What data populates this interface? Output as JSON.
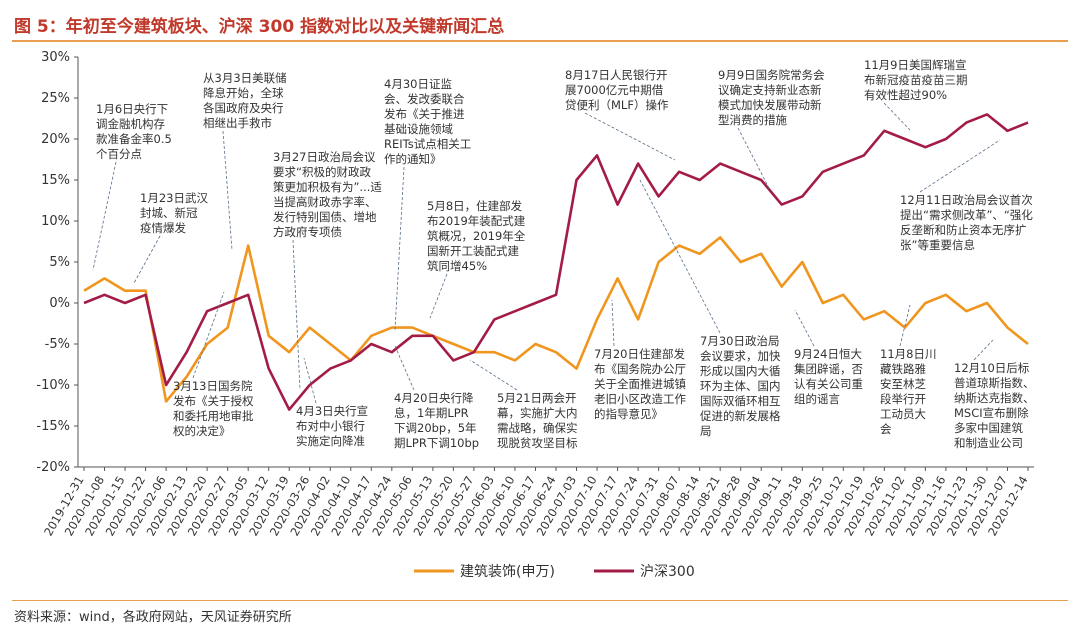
{
  "title": "图 5：年初至今建筑板块、沪深 300 指数对比以及关键新闻汇总",
  "source": "资料来源：wind，各政府网站，天风证券研究所",
  "colors": {
    "construction": "#f0961e",
    "hs300": "#a31c45",
    "accent": "#c0392b"
  },
  "chart_data": {
    "type": "line",
    "title": "图 5：年初至今建筑板块、沪深 300 指数对比以及关键新闻汇总",
    "xlabel": "",
    "ylabel": "",
    "ylim": [
      -20,
      30
    ],
    "yticks": [
      "30%",
      "25%",
      "20%",
      "15%",
      "10%",
      "5%",
      "0%",
      "-5%",
      "-10%",
      "-15%",
      "-20%"
    ],
    "x": [
      "2019-12-31",
      "2020-01-08",
      "2020-01-15",
      "2020-01-22",
      "2020-02-06",
      "2020-02-13",
      "2020-02-20",
      "2020-02-27",
      "2020-03-05",
      "2020-03-12",
      "2020-03-19",
      "2020-03-26",
      "2020-04-02",
      "2020-04-10",
      "2020-04-17",
      "2020-04-24",
      "2020-05-06",
      "2020-05-13",
      "2020-05-20",
      "2020-05-27",
      "2020-06-03",
      "2020-06-10",
      "2020-06-17",
      "2020-06-24",
      "2020-07-03",
      "2020-07-10",
      "2020-07-17",
      "2020-07-24",
      "2020-07-31",
      "2020-08-07",
      "2020-08-14",
      "2020-08-21",
      "2020-08-28",
      "2020-09-04",
      "2020-09-11",
      "2020-09-18",
      "2020-09-25",
      "2020-10-12",
      "2020-10-19",
      "2020-10-26",
      "2020-11-02",
      "2020-11-09",
      "2020-11-16",
      "2020-11-23",
      "2020-11-30",
      "2020-12-07",
      "2020-12-14"
    ],
    "grid": false,
    "legend_position": "bottom",
    "series": [
      {
        "name": "建筑装饰(申万)",
        "color": "#f0961e",
        "values": [
          1.5,
          3,
          1.5,
          1.5,
          -12,
          -9,
          -5,
          -3,
          7,
          -4,
          -6,
          -3,
          -5,
          -7,
          -4,
          -3,
          -3,
          -4,
          -5,
          -6,
          -6,
          -7,
          -5,
          -6,
          -8,
          -2,
          3,
          -2,
          5,
          7,
          6,
          8,
          5,
          6,
          2,
          5,
          0,
          1,
          -2,
          -1,
          -3,
          0,
          1,
          -1,
          0,
          -3,
          -5
        ]
      },
      {
        "name": "沪深300",
        "color": "#a31c45",
        "values": [
          0,
          1,
          0,
          1,
          -10,
          -6,
          -1,
          0,
          1,
          -8,
          -13,
          -10,
          -8,
          -7,
          -5,
          -6,
          -4,
          -4,
          -7,
          -6,
          -2,
          -1,
          0,
          1,
          15,
          18,
          12,
          17,
          13,
          16,
          15,
          17,
          16,
          15,
          12,
          13,
          16,
          17,
          18,
          21,
          20,
          19,
          20,
          22,
          23,
          21,
          22
        ]
      }
    ],
    "annotations": [
      "1月6日央行下调金融机构存款准备金率0.5个百分点",
      "1月23日武汉封城，新冠疫情爆发",
      "从3月3日美联储降息开始，全球各国政府及央行相继出手救市",
      "3月13日国务院发布《关于授权和委托用地审批权的决定》",
      "3月27日政治局会议要求“积极的财政政策更加积极有为”...适当提高财政赤字率、发行特别国债、增加地方政府专项债",
      "4月3日央行宣布对中小银行实施定向降准",
      "4月20日央行降息，1年期LPR下调20bp，5年期LPR下调10bp",
      "4月30日证监会、发改委联合发布《关于推进基础设施领域REITs试点相关工作的通知》",
      "5月8日，住建部发布2019年装配式建筑概况，2019年全国新开工装配式建筑同增45%",
      "5月21日两会开幕，实施扩大内需战略，确保实现脱贫攻坚目标",
      "7月20日住建部发布《国务院办公厅关于全面推进城镇老旧小区改造工作的指导意见》",
      "8月17日人民银行开展7000亿元中期借贷便利（MLF）操作",
      "7月30日政治局会议要求，加快形成以国内大循环为主体、国内国际双循环相互促进的新发展格局",
      "9月9日国务院常务会议确定支持新业态新模式加快发展带动新型消费的措施",
      "9月24日恒大集团辟谣，否认有关公司重组的谣言",
      "11月9日美国辉瑞宣布新冠疫苗疫苗三期有效性超过90%",
      "11月8日川藏铁路雅安至林芝段举行开工动员大会",
      "12月11日政治局会议首次提出“需求侧改革”、“强化反垄断和防止资本无序扩张”等重要信息",
      "12月10日后标普道琼斯指数、纳斯达克指数、MSCI宣布删除多家中国建筑和制造业公司"
    ]
  }
}
